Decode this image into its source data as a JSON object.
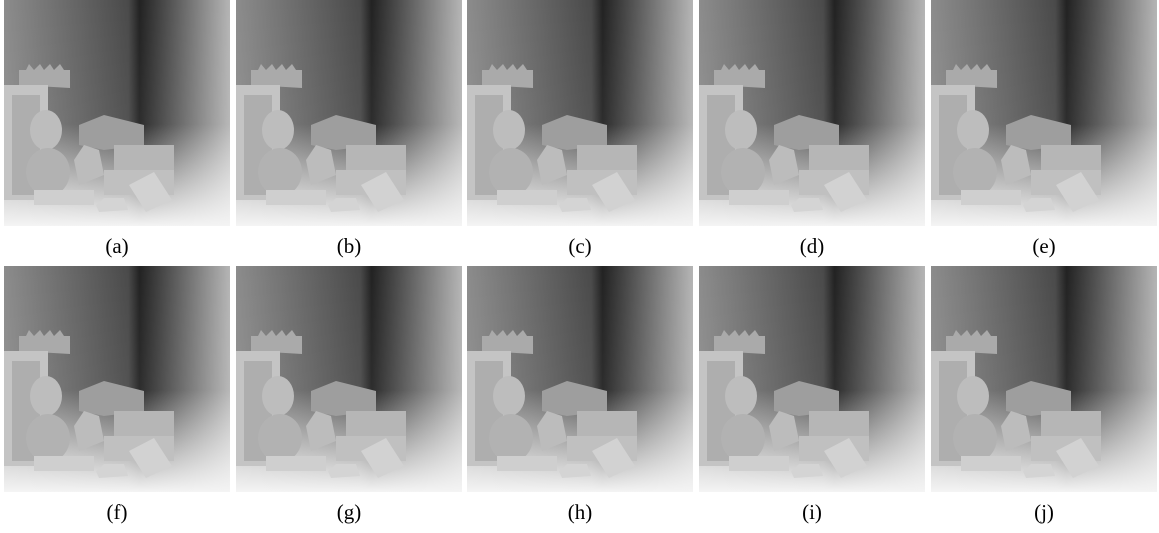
{
  "figure": {
    "labels": [
      "(a)",
      "(b)",
      "(c)",
      "(d)",
      "(e)",
      "(f)",
      "(g)",
      "(h)",
      "(i)",
      "(j)"
    ]
  }
}
